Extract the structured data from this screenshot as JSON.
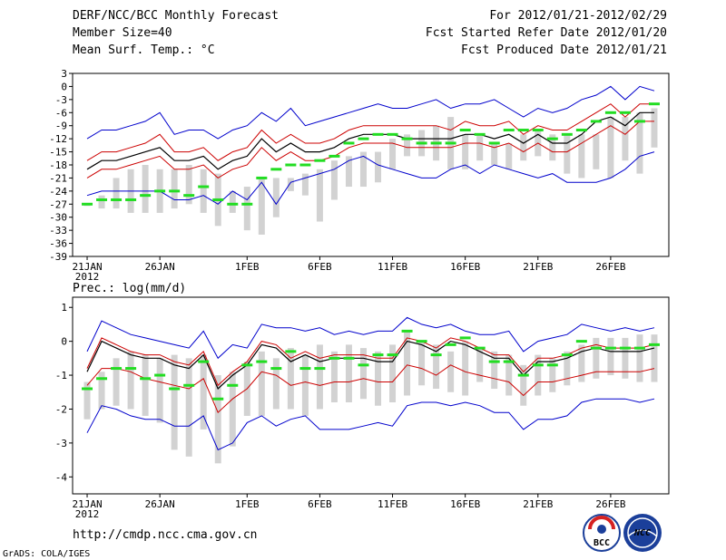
{
  "header": {
    "left_line1": "DERF/NCC/BCC Monthly Forecast",
    "left_line2": "Member Size=40",
    "left_line3": "Mean Surf. Temp.: °C",
    "right_line1": "For 2012/01/21-2012/02/29",
    "right_line2": "Fcst Started Refer Date 2012/01/20",
    "right_line3": "Fcst Produced Date 2012/01/21"
  },
  "footer": {
    "url": "http://cmdp.ncc.cma.gov.cn",
    "credit": "GrADS: COLA/IGES",
    "logo_bcc": "BCC",
    "logo_ncc": "NCC"
  },
  "colors": {
    "box": "#d2d2d2",
    "median": "#22dd22",
    "upper": "#0000cc",
    "lower": "#0000cc",
    "mean": "#000000",
    "spread_hi": "#cc0000",
    "spread_lo": "#cc0000"
  },
  "chart_data": [
    {
      "type": "line",
      "title": "Mean Surf. Temp.: °C",
      "ylim": [
        -39,
        3
      ],
      "yticks": [
        3,
        0,
        -3,
        -6,
        -9,
        -12,
        -15,
        -18,
        -21,
        -24,
        -27,
        -30,
        -33,
        -36,
        -39
      ],
      "xtick_days": [
        1,
        6,
        12,
        17,
        22,
        27,
        32,
        37
      ],
      "xtick_labels": [
        "21JAN",
        "26JAN",
        "1FEB",
        "6FEB",
        "11FEB",
        "16FEB",
        "21FEB",
        "26FEB"
      ],
      "x_year": "2012",
      "days": 40,
      "box_top": [
        -27,
        -25,
        -21,
        -19,
        -18,
        -19,
        -19,
        -18,
        -19,
        -20,
        -24,
        -23,
        -21,
        -21,
        -21,
        -20,
        -19,
        -17,
        -16,
        -15,
        -15,
        -12,
        -11,
        -10,
        -9,
        -7,
        -11,
        -11,
        -13,
        -13,
        -11,
        -10,
        -11,
        -11,
        -11,
        -11,
        -7,
        -7,
        -6,
        -5
      ],
      "box_bottom": [
        -27,
        -28,
        -28,
        -29,
        -29,
        -29,
        -28,
        -27,
        -29,
        -32,
        -29,
        -33,
        -34,
        -30,
        -24,
        -25,
        -31,
        -26,
        -23,
        -23,
        -22,
        -19,
        -16,
        -16,
        -17,
        -19,
        -19,
        -17,
        -18,
        -19,
        -17,
        -16,
        -17,
        -20,
        -21,
        -19,
        -21,
        -17,
        -20,
        -14
      ],
      "median": [
        -27,
        -26,
        -26,
        -26,
        -25,
        -24,
        -24,
        -25,
        -23,
        -26,
        -27,
        -27,
        -21,
        -19,
        -18,
        -18,
        -17,
        -16,
        -13,
        -12,
        -11,
        -11,
        -12,
        -13,
        -13,
        -13,
        -10,
        -11,
        -13,
        -10,
        -10,
        -10,
        -12,
        -11,
        -10,
        -8,
        -6,
        -6,
        -8,
        -4
      ],
      "upper": [
        -12,
        -10,
        -10,
        -9,
        -8,
        -6,
        -11,
        -10,
        -10,
        -12,
        -10,
        -9,
        -6,
        -8,
        -5,
        -9,
        -8,
        -7,
        -6,
        -5,
        -4,
        -5,
        -5,
        -4,
        -3,
        -5,
        -4,
        -4,
        -3,
        -5,
        -7,
        -5,
        -6,
        -5,
        -3,
        -2,
        0,
        -3,
        0,
        -1
      ],
      "spread_hi": [
        -17,
        -15,
        -15,
        -14,
        -13,
        -11,
        -15,
        -15,
        -14,
        -17,
        -15,
        -14,
        -10,
        -13,
        -11,
        -13,
        -13,
        -12,
        -10,
        -9,
        -9,
        -9,
        -9,
        -9,
        -9,
        -10,
        -8,
        -9,
        -9,
        -8,
        -11,
        -9,
        -10,
        -10,
        -8,
        -6,
        -4,
        -7,
        -4,
        -4
      ],
      "mean": [
        -19,
        -17,
        -17,
        -16,
        -15,
        -14,
        -17,
        -17,
        -16,
        -19,
        -17,
        -16,
        -12,
        -15,
        -13,
        -15,
        -15,
        -14,
        -12,
        -11,
        -11,
        -11,
        -12,
        -12,
        -12,
        -12,
        -11,
        -11,
        -12,
        -11,
        -13,
        -11,
        -13,
        -13,
        -11,
        -8,
        -7,
        -9,
        -6,
        -6
      ],
      "spread_lo": [
        -21,
        -19,
        -19,
        -18,
        -17,
        -16,
        -19,
        -19,
        -18,
        -21,
        -19,
        -18,
        -14,
        -17,
        -15,
        -17,
        -17,
        -16,
        -14,
        -13,
        -13,
        -13,
        -14,
        -14,
        -14,
        -14,
        -13,
        -13,
        -14,
        -13,
        -15,
        -13,
        -15,
        -15,
        -13,
        -11,
        -9,
        -11,
        -8,
        -8
      ],
      "lower": [
        -25,
        -24,
        -24,
        -24,
        -24,
        -24,
        -26,
        -26,
        -25,
        -27,
        -24,
        -26,
        -22,
        -27,
        -22,
        -21,
        -20,
        -19,
        -17,
        -16,
        -18,
        -19,
        -20,
        -21,
        -21,
        -19,
        -18,
        -20,
        -18,
        -19,
        -20,
        -21,
        -20,
        -22,
        -22,
        -22,
        -21,
        -19,
        -16,
        -15
      ]
    },
    {
      "type": "line",
      "title": "Prec.: log(mm/d)",
      "ylim": [
        -4.5,
        1.3
      ],
      "yticks": [
        1,
        0,
        -1,
        -2,
        -3,
        -4
      ],
      "xtick_days": [
        1,
        6,
        12,
        17,
        22,
        27,
        32,
        37
      ],
      "xtick_labels": [
        "21JAN",
        "26JAN",
        "1FEB",
        "6FEB",
        "11FEB",
        "16FEB",
        "21FEB",
        "26FEB"
      ],
      "x_year": "2012",
      "days": 40,
      "box_top": [
        -1.2,
        -0.9,
        -0.5,
        -0.3,
        -0.4,
        -0.5,
        -0.4,
        -0.5,
        -0.4,
        -1.0,
        -0.9,
        -0.6,
        -0.3,
        -0.5,
        -0.2,
        -0.4,
        -0.1,
        -0.3,
        -0.1,
        -0.2,
        -0.3,
        -0.1,
        0.3,
        0.0,
        -0.1,
        -0.3,
        0.0,
        -0.2,
        -0.3,
        -0.4,
        -0.7,
        -0.4,
        -0.5,
        -0.3,
        -0.1,
        0.1,
        0.1,
        0.1,
        0.2,
        0.2
      ],
      "box_bottom": [
        -2.3,
        -2.0,
        -1.9,
        -2.0,
        -2.2,
        -2.4,
        -3.2,
        -3.4,
        -2.6,
        -3.6,
        -3.1,
        -2.2,
        -2.2,
        -2.0,
        -2.0,
        -2.2,
        -2.0,
        -1.8,
        -1.8,
        -1.7,
        -1.9,
        -1.8,
        -1.6,
        -1.3,
        -1.4,
        -1.5,
        -1.6,
        -1.2,
        -1.4,
        -1.6,
        -1.9,
        -1.6,
        -1.5,
        -1.3,
        -1.2,
        -1.1,
        -1.0,
        -1.1,
        -1.2,
        -1.2
      ],
      "median": [
        -1.4,
        -1.1,
        -0.8,
        -0.8,
        -1.1,
        -1.0,
        -1.4,
        -1.3,
        -0.6,
        -1.7,
        -1.3,
        -0.7,
        -0.6,
        -0.8,
        -0.3,
        -0.8,
        -0.8,
        -0.5,
        -0.5,
        -0.7,
        -0.4,
        -0.4,
        0.3,
        0.0,
        -0.4,
        -0.1,
        0.1,
        -0.2,
        -0.6,
        -0.6,
        -1.0,
        -0.7,
        -0.7,
        -0.4,
        0.0,
        -0.2,
        -0.2,
        -0.2,
        -0.2,
        -0.1
      ],
      "upper": [
        -0.3,
        0.6,
        0.4,
        0.2,
        0.1,
        0.0,
        -0.1,
        -0.2,
        0.3,
        -0.5,
        -0.1,
        -0.2,
        0.5,
        0.4,
        0.4,
        0.3,
        0.4,
        0.2,
        0.3,
        0.2,
        0.3,
        0.3,
        0.7,
        0.5,
        0.4,
        0.5,
        0.3,
        0.2,
        0.2,
        0.3,
        -0.3,
        0.0,
        0.1,
        0.2,
        0.5,
        0.4,
        0.3,
        0.4,
        0.3,
        0.4
      ],
      "mean": [
        -0.9,
        0.0,
        -0.2,
        -0.4,
        -0.5,
        -0.5,
        -0.7,
        -0.8,
        -0.4,
        -1.4,
        -1.0,
        -0.7,
        -0.1,
        -0.2,
        -0.6,
        -0.4,
        -0.6,
        -0.5,
        -0.5,
        -0.5,
        -0.6,
        -0.6,
        0.0,
        -0.1,
        -0.3,
        0.0,
        -0.1,
        -0.3,
        -0.5,
        -0.5,
        -1.0,
        -0.6,
        -0.6,
        -0.5,
        -0.3,
        -0.2,
        -0.3,
        -0.3,
        -0.3,
        -0.2
      ],
      "spread_hi": [
        -0.8,
        0.1,
        -0.1,
        -0.3,
        -0.4,
        -0.4,
        -0.6,
        -0.7,
        -0.3,
        -1.3,
        -0.9,
        -0.6,
        0.0,
        -0.1,
        -0.5,
        -0.3,
        -0.5,
        -0.4,
        -0.4,
        -0.4,
        -0.5,
        -0.5,
        0.1,
        0.0,
        -0.2,
        0.1,
        0.0,
        -0.2,
        -0.4,
        -0.4,
        -0.9,
        -0.5,
        -0.5,
        -0.4,
        -0.2,
        -0.1,
        -0.2,
        -0.2,
        -0.2,
        -0.1
      ],
      "spread_lo": [
        -1.3,
        -0.8,
        -0.8,
        -0.9,
        -1.1,
        -1.2,
        -1.3,
        -1.4,
        -1.1,
        -2.1,
        -1.7,
        -1.4,
        -0.9,
        -1.0,
        -1.3,
        -1.2,
        -1.3,
        -1.2,
        -1.2,
        -1.1,
        -1.2,
        -1.2,
        -0.7,
        -0.8,
        -1.0,
        -0.7,
        -0.9,
        -1.0,
        -1.1,
        -1.2,
        -1.6,
        -1.2,
        -1.2,
        -1.1,
        -1.0,
        -0.9,
        -0.9,
        -0.9,
        -0.9,
        -0.8
      ],
      "lower": [
        -2.7,
        -1.9,
        -2.0,
        -2.2,
        -2.3,
        -2.3,
        -2.5,
        -2.5,
        -2.2,
        -3.2,
        -3.0,
        -2.4,
        -2.2,
        -2.5,
        -2.3,
        -2.2,
        -2.6,
        -2.6,
        -2.6,
        -2.5,
        -2.4,
        -2.5,
        -1.9,
        -1.8,
        -1.8,
        -1.9,
        -1.8,
        -1.9,
        -2.1,
        -2.1,
        -2.6,
        -2.3,
        -2.3,
        -2.2,
        -1.8,
        -1.7,
        -1.7,
        -1.7,
        -1.8,
        -1.7
      ]
    }
  ]
}
